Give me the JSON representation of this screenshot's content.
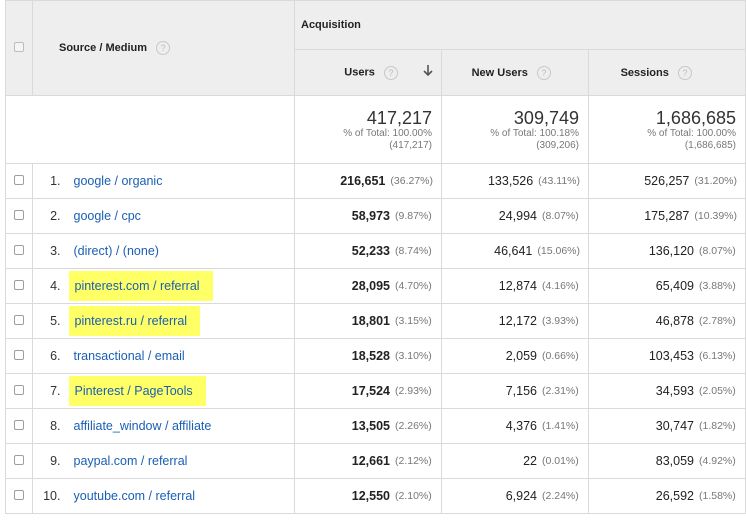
{
  "header": {
    "dimension_label": "Source / Medium",
    "group_label": "Acquisition",
    "columns": [
      {
        "label": "Users",
        "sorted": true
      },
      {
        "label": "New Users",
        "sorted": false
      },
      {
        "label": "Sessions",
        "sorted": false
      }
    ]
  },
  "totals": {
    "users": {
      "value": "417,217",
      "pct": "% of Total: 100.00%",
      "abs": "(417,217)"
    },
    "new_users": {
      "value": "309,749",
      "pct": "% of Total: 100.18%",
      "abs": "(309,206)"
    },
    "sessions": {
      "value": "1,686,685",
      "pct": "% of Total: 100.00%",
      "abs": "(1,686,685)"
    }
  },
  "rows": [
    {
      "idx": "1.",
      "source": "google / organic",
      "highlight": false,
      "users": "216,651",
      "users_pct": "(36.27%)",
      "new_users": "133,526",
      "new_users_pct": "(43.11%)",
      "sessions": "526,257",
      "sessions_pct": "(31.20%)"
    },
    {
      "idx": "2.",
      "source": "google / cpc",
      "highlight": false,
      "users": "58,973",
      "users_pct": "(9.87%)",
      "new_users": "24,994",
      "new_users_pct": "(8.07%)",
      "sessions": "175,287",
      "sessions_pct": "(10.39%)"
    },
    {
      "idx": "3.",
      "source": "(direct) / (none)",
      "highlight": false,
      "users": "52,233",
      "users_pct": "(8.74%)",
      "new_users": "46,641",
      "new_users_pct": "(15.06%)",
      "sessions": "136,120",
      "sessions_pct": "(8.07%)"
    },
    {
      "idx": "4.",
      "source": "pinterest.com / referral",
      "highlight": true,
      "users": "28,095",
      "users_pct": "(4.70%)",
      "new_users": "12,874",
      "new_users_pct": "(4.16%)",
      "sessions": "65,409",
      "sessions_pct": "(3.88%)"
    },
    {
      "idx": "5.",
      "source": "pinterest.ru / referral",
      "highlight": true,
      "users": "18,801",
      "users_pct": "(3.15%)",
      "new_users": "12,172",
      "new_users_pct": "(3.93%)",
      "sessions": "46,878",
      "sessions_pct": "(2.78%)"
    },
    {
      "idx": "6.",
      "source": "transactional / email",
      "highlight": false,
      "users": "18,528",
      "users_pct": "(3.10%)",
      "new_users": "2,059",
      "new_users_pct": "(0.66%)",
      "sessions": "103,453",
      "sessions_pct": "(6.13%)"
    },
    {
      "idx": "7.",
      "source": "Pinterest / PageTools",
      "highlight": true,
      "users": "17,524",
      "users_pct": "(2.93%)",
      "new_users": "7,156",
      "new_users_pct": "(2.31%)",
      "sessions": "34,593",
      "sessions_pct": "(2.05%)"
    },
    {
      "idx": "8.",
      "source": "affiliate_window / affiliate",
      "highlight": false,
      "users": "13,505",
      "users_pct": "(2.26%)",
      "new_users": "4,376",
      "new_users_pct": "(1.41%)",
      "sessions": "30,747",
      "sessions_pct": "(1.82%)"
    },
    {
      "idx": "9.",
      "source": "paypal.com / referral",
      "highlight": false,
      "users": "12,661",
      "users_pct": "(2.12%)",
      "new_users": "22",
      "new_users_pct": "(0.01%)",
      "sessions": "83,059",
      "sessions_pct": "(4.92%)"
    },
    {
      "idx": "10.",
      "source": "youtube.com / referral",
      "highlight": false,
      "users": "12,550",
      "users_pct": "(2.10%)",
      "new_users": "6,924",
      "new_users_pct": "(2.24%)",
      "sessions": "26,592",
      "sessions_pct": "(1.58%)"
    }
  ],
  "colors": {
    "link": "#1a5fb4",
    "highlight": "#ffff66",
    "header_bg": "#eeeeee"
  },
  "icons": {
    "help": "question-circle-icon",
    "sort": "arrow-down-icon"
  }
}
